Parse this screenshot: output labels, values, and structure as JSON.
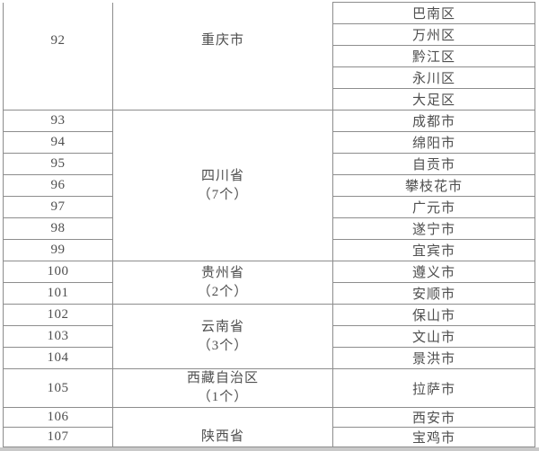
{
  "colors": {
    "text": "#4f4f4f",
    "border": "#8d8d8d",
    "background": "#ffffff",
    "bottom_strip": "#c9c9c9"
  },
  "table": {
    "groups": [
      {
        "index": "92",
        "index_merged": true,
        "province_lines": [
          "重庆市"
        ],
        "cities": [
          "巴南区",
          "万州区",
          "黔江区",
          "永川区",
          "大足区"
        ]
      },
      {
        "indexes": [
          "93",
          "94",
          "95",
          "96",
          "97",
          "98",
          "99"
        ],
        "province_lines": [
          "四川省",
          "（7个）"
        ],
        "cities": [
          "成都市",
          "绵阳市",
          "自贡市",
          "攀枝花市",
          "广元市",
          "遂宁市",
          "宜宾市"
        ]
      },
      {
        "indexes": [
          "100",
          "101"
        ],
        "province_lines": [
          "贵州省",
          "（2个）"
        ],
        "cities": [
          "遵义市",
          "安顺市"
        ]
      },
      {
        "indexes": [
          "102",
          "103",
          "104"
        ],
        "province_lines": [
          "云南省",
          "（3个）"
        ],
        "cities": [
          "保山市",
          "文山市",
          "景洪市"
        ]
      },
      {
        "indexes": [
          "105"
        ],
        "province_lines": [
          "西藏自治区",
          "（1个）"
        ],
        "cities": [
          "拉萨市"
        ]
      },
      {
        "indexes": [
          "106",
          "107"
        ],
        "province_lines": [
          "陕西省"
        ],
        "cities": [
          "西安市",
          "宝鸡市"
        ]
      }
    ]
  }
}
